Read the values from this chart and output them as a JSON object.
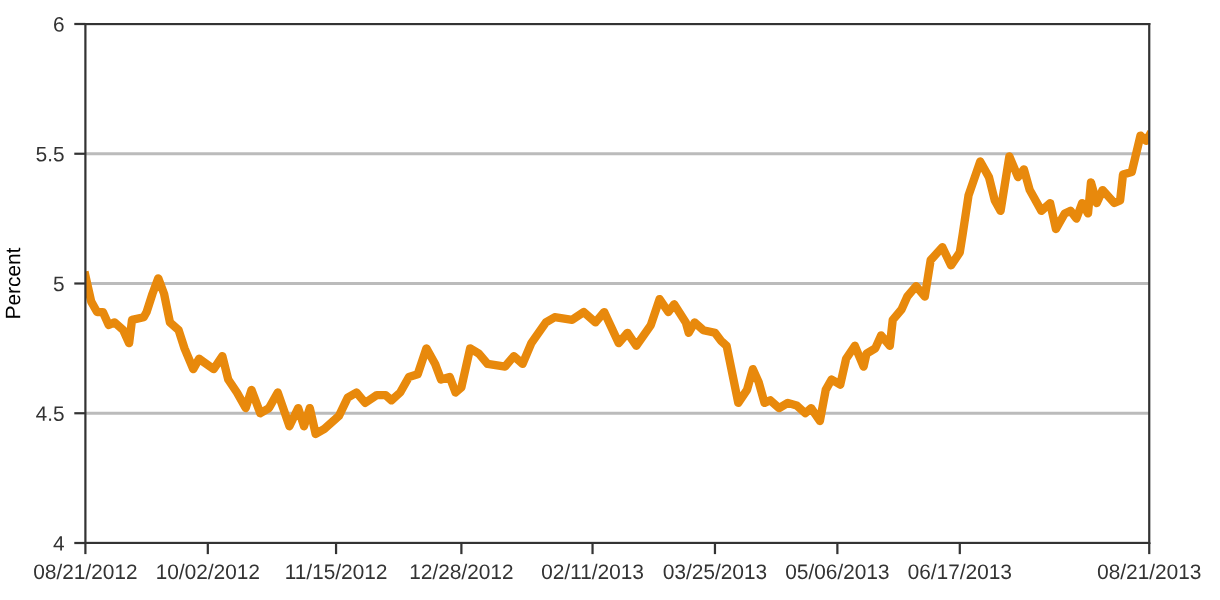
{
  "chart_data": {
    "type": "line",
    "ylabel": "Percent",
    "x": [
      "2012-08-21",
      "2012-08-23",
      "2012-08-25",
      "2012-08-27",
      "2012-08-29",
      "2012-08-31",
      "2012-09-03",
      "2012-09-05",
      "2012-09-06",
      "2012-09-10",
      "2012-09-11",
      "2012-09-13",
      "2012-09-15",
      "2012-09-17",
      "2012-09-19",
      "2012-09-22",
      "2012-09-24",
      "2012-09-27",
      "2012-09-29",
      "2012-10-04",
      "2012-10-07",
      "2012-10-09",
      "2012-10-12",
      "2012-10-15",
      "2012-10-17",
      "2012-10-20",
      "2012-10-23",
      "2012-10-26",
      "2012-10-30",
      "2012-11-02",
      "2012-11-04",
      "2012-11-06",
      "2012-11-08",
      "2012-11-11",
      "2012-11-16",
      "2012-11-19",
      "2012-11-22",
      "2012-11-25",
      "2012-11-29",
      "2012-12-02",
      "2012-12-04",
      "2012-12-07",
      "2012-12-10",
      "2012-12-13",
      "2012-12-16",
      "2012-12-19",
      "2012-12-21",
      "2012-12-24",
      "2012-12-26",
      "2012-12-28",
      "2012-12-31",
      "2013-01-03",
      "2013-01-06",
      "2013-01-12",
      "2013-01-15",
      "2013-01-18",
      "2013-01-21",
      "2013-01-26",
      "2013-01-29",
      "2013-02-04",
      "2013-02-08",
      "2013-02-12",
      "2013-02-15",
      "2013-02-20",
      "2013-02-23",
      "2013-02-26",
      "2013-03-03",
      "2013-03-06",
      "2013-03-09",
      "2013-03-11",
      "2013-03-15",
      "2013-03-16",
      "2013-03-18",
      "2013-03-21",
      "2013-03-25",
      "2013-03-27",
      "2013-03-29",
      "2013-04-02",
      "2013-04-05",
      "2013-04-07",
      "2013-04-09",
      "2013-04-11",
      "2013-04-13",
      "2013-04-16",
      "2013-04-19",
      "2013-04-22",
      "2013-04-25",
      "2013-04-27",
      "2013-04-30",
      "2013-05-02",
      "2013-05-04",
      "2013-05-07",
      "2013-05-09",
      "2013-05-12",
      "2013-05-15",
      "2013-05-16",
      "2013-05-19",
      "2013-05-21",
      "2013-05-24",
      "2013-05-25",
      "2013-05-28",
      "2013-05-30",
      "2013-06-02",
      "2013-06-05",
      "2013-06-07",
      "2013-06-11",
      "2013-06-14",
      "2013-06-17",
      "2013-06-18",
      "2013-06-20",
      "2013-06-24",
      "2013-06-27",
      "2013-06-29",
      "2013-07-01",
      "2013-07-04",
      "2013-07-07",
      "2013-07-09",
      "2013-07-11",
      "2013-07-15",
      "2013-07-18",
      "2013-07-20",
      "2013-07-23",
      "2013-07-25",
      "2013-07-27",
      "2013-07-29",
      "2013-07-31",
      "2013-08-01",
      "2013-08-03",
      "2013-08-05",
      "2013-08-09",
      "2013-08-11",
      "2013-08-12",
      "2013-08-15",
      "2013-08-18",
      "2013-08-20",
      "2013-08-21"
    ],
    "series": [
      {
        "color": "#e8890c",
        "values": [
          5.03,
          4.93,
          4.89,
          4.89,
          4.84,
          4.85,
          4.82,
          4.77,
          4.86,
          4.87,
          4.89,
          4.96,
          5.02,
          4.96,
          4.85,
          4.82,
          4.75,
          4.67,
          4.71,
          4.67,
          4.72,
          4.63,
          4.58,
          4.52,
          4.59,
          4.5,
          4.52,
          4.58,
          4.45,
          4.52,
          4.45,
          4.52,
          4.42,
          4.44,
          4.49,
          4.56,
          4.58,
          4.54,
          4.57,
          4.57,
          4.55,
          4.58,
          4.64,
          4.65,
          4.75,
          4.69,
          4.63,
          4.64,
          4.58,
          4.6,
          4.75,
          4.73,
          4.69,
          4.68,
          4.72,
          4.69,
          4.77,
          4.85,
          4.87,
          4.86,
          4.89,
          4.85,
          4.89,
          4.77,
          4.81,
          4.76,
          4.84,
          4.94,
          4.89,
          4.92,
          4.85,
          4.81,
          4.85,
          4.82,
          4.81,
          4.78,
          4.76,
          4.54,
          4.59,
          4.67,
          4.62,
          4.54,
          4.55,
          4.52,
          4.54,
          4.53,
          4.5,
          4.52,
          4.47,
          4.59,
          4.63,
          4.61,
          4.71,
          4.76,
          4.68,
          4.73,
          4.75,
          4.8,
          4.76,
          4.86,
          4.9,
          4.95,
          4.99,
          4.95,
          5.09,
          5.14,
          5.07,
          5.12,
          5.19,
          5.34,
          5.47,
          5.41,
          5.32,
          5.28,
          5.49,
          5.41,
          5.44,
          5.36,
          5.28,
          5.31,
          5.21,
          5.27,
          5.28,
          5.25,
          5.31,
          5.27,
          5.39,
          5.31,
          5.36,
          5.31,
          5.32,
          5.42,
          5.43,
          5.57,
          5.55,
          5.57
        ]
      }
    ],
    "xlim": [
      "2012-08-21",
      "2013-08-21"
    ],
    "xticks": [
      {
        "value": "2012-08-21",
        "label": "08/21/2012"
      },
      {
        "value": "2012-10-02",
        "label": "10/02/2012"
      },
      {
        "value": "2012-11-15",
        "label": "11/15/2012"
      },
      {
        "value": "2012-12-28",
        "label": "12/28/2012"
      },
      {
        "value": "2013-02-11",
        "label": "02/11/2013"
      },
      {
        "value": "2013-03-25",
        "label": "03/25/2013"
      },
      {
        "value": "2013-05-06",
        "label": "05/06/2013"
      },
      {
        "value": "2013-06-17",
        "label": "06/17/2013"
      },
      {
        "value": "2013-08-21",
        "label": "08/21/2013"
      }
    ],
    "ylim": [
      4,
      6
    ],
    "yticks": [
      4,
      4.5,
      5,
      5.5,
      6
    ],
    "grid": "y",
    "legend": false,
    "marker": "none",
    "line_style": "solid"
  }
}
